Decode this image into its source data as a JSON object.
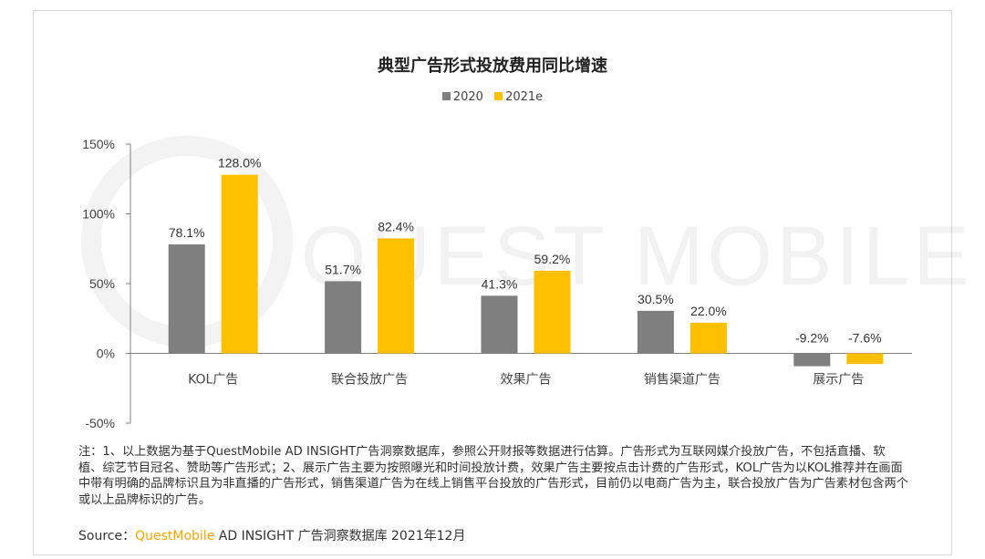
{
  "title": "典型广告形式投放费用同比增速",
  "legend": [
    {
      "label": "2020",
      "color": "#7f7f7f"
    },
    {
      "label": "2021e",
      "color": "#ffc000"
    }
  ],
  "watermark_text": "QUEST MOBILE",
  "chart_data": {
    "type": "bar",
    "title": "典型广告形式投放费用同比增速",
    "categories": [
      "KOL广告",
      "联合投放广告",
      "效果广告",
      "销售渠道广告",
      "展示广告"
    ],
    "series": [
      {
        "name": "2020",
        "values": [
          78.1,
          51.7,
          41.3,
          30.5,
          -9.2
        ],
        "color": "#7f7f7f",
        "labels": [
          "78.1%",
          "51.7%",
          "41.3%",
          "30.5%",
          "-9.2%"
        ]
      },
      {
        "name": "2021e",
        "values": [
          128.0,
          82.4,
          59.2,
          22.0,
          -7.6
        ],
        "color": "#ffc000",
        "labels": [
          "128.0%",
          "82.4%",
          "59.2%",
          "22.0%",
          "-7.6%"
        ]
      }
    ],
    "ylim": [
      -50,
      150
    ],
    "yticks": [
      150,
      100,
      50,
      0,
      -50
    ],
    "ytick_labels": [
      "150%",
      "100%",
      "50%",
      "0%",
      "-50%"
    ],
    "xlabel": "",
    "ylabel": "",
    "grid": false,
    "legend_position": "top"
  },
  "footnote": "注：1、以上数据为基于QuestMobile AD INSIGHT广告洞察数据库，参照公开财报等数据进行估算。广告形式为互联网媒介投放广告，不包括直播、软植、综艺节目冠名、赞助等广告形式；2、展示广告主要为按照曝光和时间投放计费，效果广告主要按点击计费的广告形式，KOL广告为以KOL推荐并在画面中带有明确的品牌标识且为非直播的广告形式，销售渠道广告为在线上销售平台投放的广告形式，目前仍以电商广告为主，联合投放广告为广告素材包含两个或以上品牌标识的广告。",
  "source": {
    "prefix": "Source：",
    "brand": "QuestMobile",
    "suffix": " AD INSIGHT 广告洞察数据库 2021年12月"
  }
}
